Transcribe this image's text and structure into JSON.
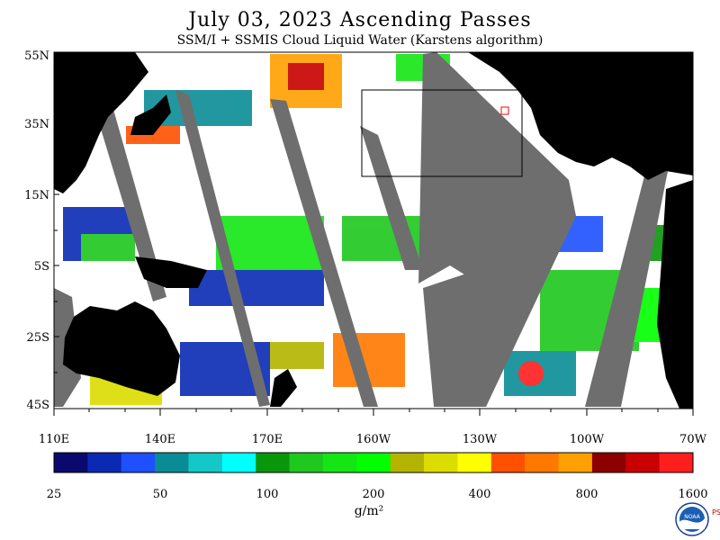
{
  "header": {
    "title": "July 03, 2023  Ascending Passes",
    "subtitle": "SSM/I + SSMIS Cloud Liquid Water (Karstens algorithm)"
  },
  "map": {
    "lat_labels": [
      "55N",
      "35N",
      "15N",
      "5S",
      "25S",
      "45S"
    ],
    "lon_labels": [
      "110E",
      "140E",
      "170E",
      "160W",
      "130W",
      "100W",
      "70W"
    ]
  },
  "colorbar": {
    "colors": [
      "#0a0a6e",
      "#0a2ab4",
      "#1e50ff",
      "#0a8c96",
      "#14c8c8",
      "#00ffff",
      "#0a960a",
      "#1ec81e",
      "#14e614",
      "#00ff00",
      "#b4b400",
      "#dcdc00",
      "#ffff00",
      "#ff5000",
      "#ff7800",
      "#ffa000",
      "#8c0000",
      "#c80000",
      "#ff1e1e"
    ],
    "tick_labels": [
      "25",
      "50",
      "100",
      "200",
      "400",
      "800",
      "1600"
    ],
    "unit": "g/m²"
  },
  "logo": {
    "text": "NOAA",
    "side_text": "PSL"
  }
}
